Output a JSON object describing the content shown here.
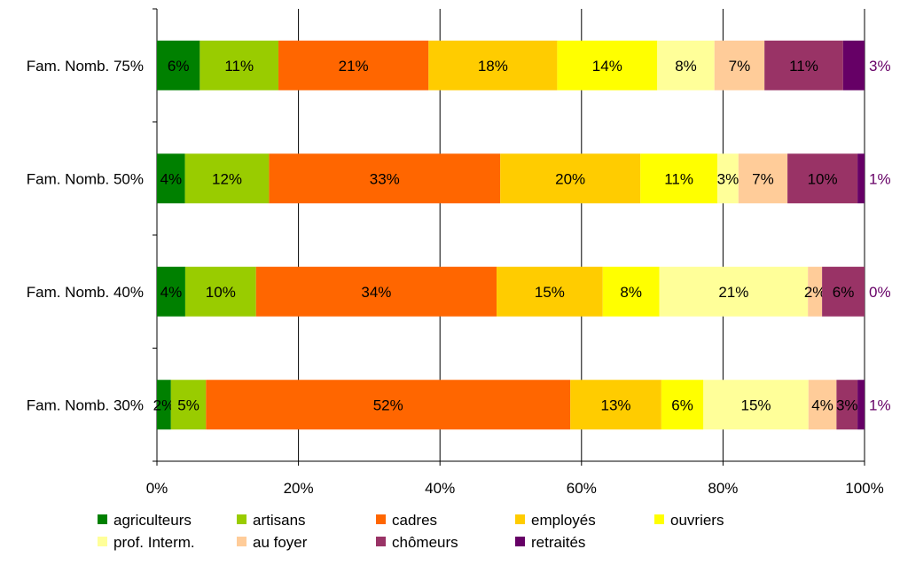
{
  "chart_data": {
    "type": "bar",
    "orientation": "horizontal",
    "stacked": "percent",
    "categories": [
      "Fam. Nomb. 75%",
      "Fam. Nomb. 50%",
      "Fam. Nomb. 40%",
      "Fam. Nomb. 30%"
    ],
    "series": [
      {
        "name": "agriculteurs",
        "color": "#008000",
        "values": [
          6,
          4,
          4,
          2
        ]
      },
      {
        "name": "artisans",
        "color": "#99cc00",
        "values": [
          11,
          12,
          10,
          5
        ]
      },
      {
        "name": "cadres",
        "color": "#ff6600",
        "values": [
          21,
          33,
          34,
          52
        ]
      },
      {
        "name": "employés",
        "color": "#ffcc00",
        "values": [
          18,
          20,
          15,
          13
        ]
      },
      {
        "name": "ouvriers",
        "color": "#ffff00",
        "values": [
          14,
          11,
          8,
          6
        ]
      },
      {
        "name": "prof. Interm.",
        "color": "#ffff99",
        "values": [
          8,
          3,
          21,
          15
        ]
      },
      {
        "name": "au foyer",
        "color": "#ffcc99",
        "values": [
          7,
          7,
          2,
          4
        ]
      },
      {
        "name": "chômeurs",
        "color": "#993366",
        "values": [
          11,
          10,
          6,
          3
        ]
      },
      {
        "name": "retraités",
        "color": "#660066",
        "values": [
          3,
          1,
          0,
          1
        ]
      }
    ],
    "xlim": [
      0,
      100
    ],
    "x_ticks": [
      "0%",
      "20%",
      "40%",
      "60%",
      "80%",
      "100%"
    ],
    "grid": "vertical",
    "legend_position": "bottom",
    "title": "",
    "xlabel": "",
    "ylabel": ""
  }
}
